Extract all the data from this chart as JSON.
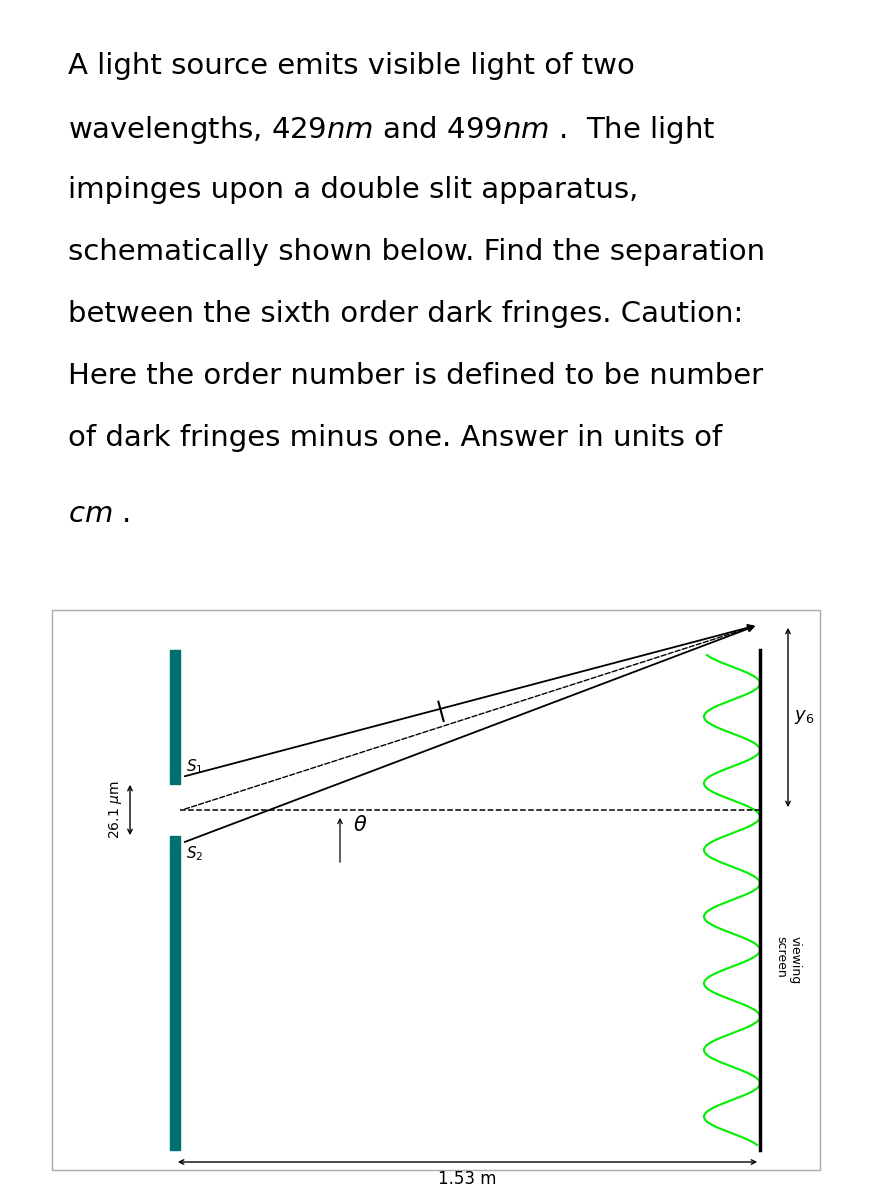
{
  "bg_color": "#ffffff",
  "text_lines": [
    "A light source emits visible light of two",
    "wavelengths, 429$nm$ and 499$nm$ .  The light",
    "impinges upon a double slit apparatus,",
    "schematically shown below. Find the separation",
    "between the sixth order dark fringes. Caution:",
    "Here the order number is defined to be number",
    "of dark fringes minus one. Answer in units of",
    "$cm$ ."
  ],
  "slit_color": "#007070",
  "screen_color": "#000000",
  "wave_color": "#00ee00",
  "dim_label_26": "26.1 $\\mu$m",
  "dim_label_153": "1.53 m",
  "label_S1": "$S_1$",
  "label_S2": "$S_2$",
  "label_theta": "$\\theta$",
  "label_y6": "$y_6$",
  "fontsize_text": 21,
  "fontsize_labels": 12,
  "fontsize_dim": 12
}
